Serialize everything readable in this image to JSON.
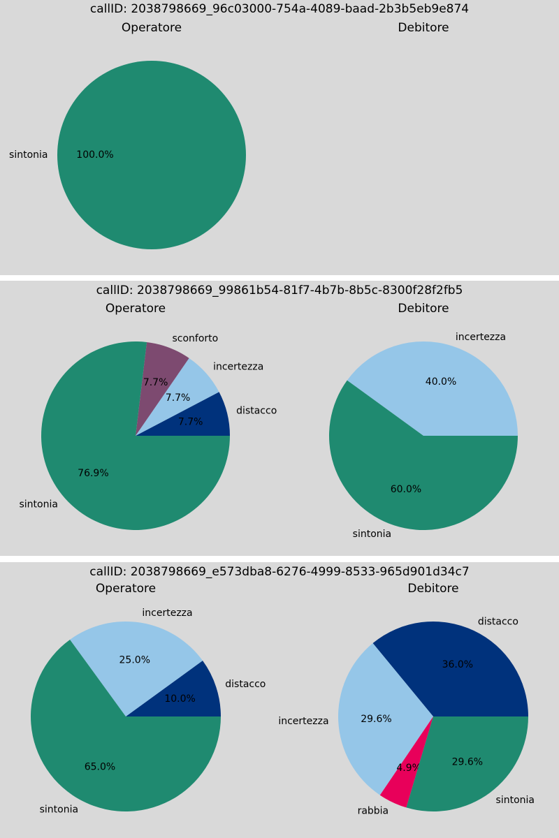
{
  "colors": {
    "sintonia": "#1f8a70",
    "sconforto": "#7d4a70",
    "incertezza": "#95c6e8",
    "distacco": "#00327c",
    "rabbia": "#e8005a"
  },
  "chart_data": [
    {
      "type": "pie",
      "title": "callID: 2038798669_96c03000-754a-4089-baad-2b3b5eb9e874",
      "pies": [
        {
          "subtitle": "Operatore",
          "slices": [
            {
              "label": "sintonia",
              "value": 100.0,
              "pct": "100.0%"
            }
          ]
        },
        {
          "subtitle": "Debitore",
          "slices": []
        }
      ]
    },
    {
      "type": "pie",
      "title": "callID: 2038798669_99861b54-81f7-4b7b-8b5c-8300f28f2fb5",
      "pies": [
        {
          "subtitle": "Operatore",
          "slices": [
            {
              "label": "distacco",
              "value": 7.7,
              "pct": "7.7%"
            },
            {
              "label": "incertezza",
              "value": 7.7,
              "pct": "7.7%"
            },
            {
              "label": "sconforto",
              "value": 7.7,
              "pct": "7.7%"
            },
            {
              "label": "sintonia",
              "value": 76.9,
              "pct": "76.9%"
            }
          ]
        },
        {
          "subtitle": "Debitore",
          "slices": [
            {
              "label": "incertezza",
              "value": 40.0,
              "pct": "40.0%"
            },
            {
              "label": "sintonia",
              "value": 60.0,
              "pct": "60.0%"
            }
          ]
        }
      ]
    },
    {
      "type": "pie",
      "title": "callID: 2038798669_e573dba8-6276-4999-8533-965d901d34c7",
      "pies": [
        {
          "subtitle": "Operatore",
          "slices": [
            {
              "label": "distacco",
              "value": 10.0,
              "pct": "10.0%"
            },
            {
              "label": "incertezza",
              "value": 25.0,
              "pct": "25.0%"
            },
            {
              "label": "sintonia",
              "value": 65.0,
              "pct": "65.0%"
            }
          ]
        },
        {
          "subtitle": "Debitore",
          "slices": [
            {
              "label": "distacco",
              "value": 36.0,
              "pct": "36.0%"
            },
            {
              "label": "incertezza",
              "value": 29.6,
              "pct": "29.6%"
            },
            {
              "label": "rabbia",
              "value": 4.9,
              "pct": "4.9%"
            },
            {
              "label": "sintonia",
              "value": 29.6,
              "pct": "29.6%"
            }
          ]
        }
      ]
    }
  ]
}
